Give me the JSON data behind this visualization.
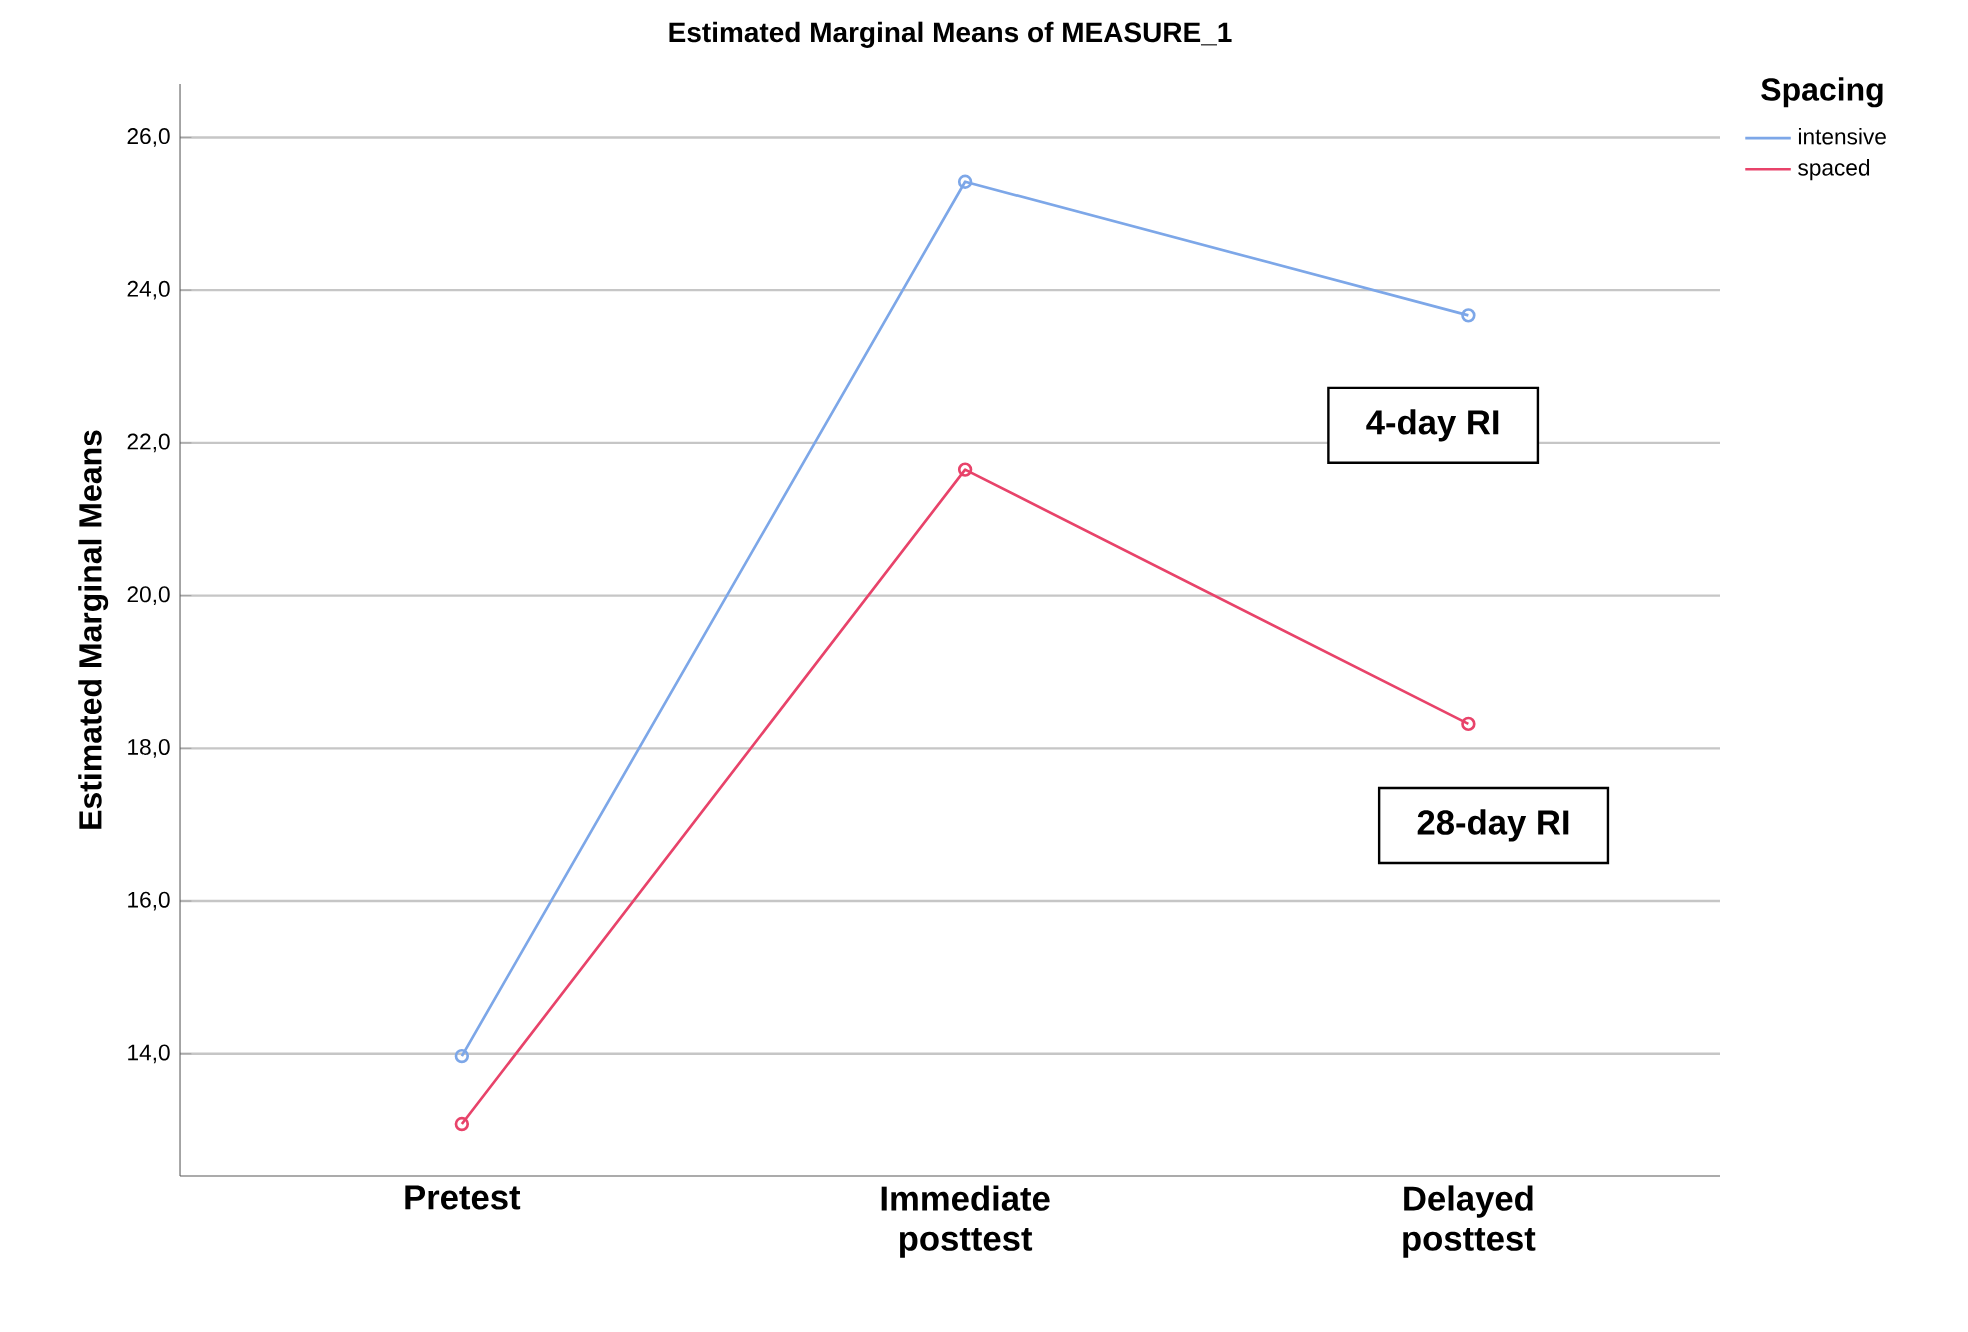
{
  "chart_data": {
    "type": "line",
    "title": "Estimated Marginal Means of MEASURE_1",
    "ylabel": "Estimated Marginal Means",
    "legend_title": "Spacing",
    "categories": [
      "Pretest",
      "Immediate posttest",
      "Delayed posttest"
    ],
    "series": [
      {
        "name": "intensive",
        "color": "#7da7e8",
        "values": [
          13.97,
          25.42,
          23.67
        ]
      },
      {
        "name": "spaced",
        "color": "#e8436a",
        "values": [
          13.08,
          21.65,
          18.32
        ]
      }
    ],
    "ylim": [
      12.4,
      26.7
    ],
    "yticks": [
      {
        "value": 14,
        "label": "14,0"
      },
      {
        "value": 16,
        "label": "16,0"
      },
      {
        "value": 18,
        "label": "18,0"
      },
      {
        "value": 20,
        "label": "20,0"
      },
      {
        "value": 22,
        "label": "22,0"
      },
      {
        "value": 24,
        "label": "24,0"
      },
      {
        "value": 26,
        "label": "26,0"
      }
    ],
    "annotations": [
      "4-day RI",
      "28-day RI"
    ],
    "grid": "y",
    "legend": "top right",
    "marker": "circle",
    "line_style": "solid"
  }
}
